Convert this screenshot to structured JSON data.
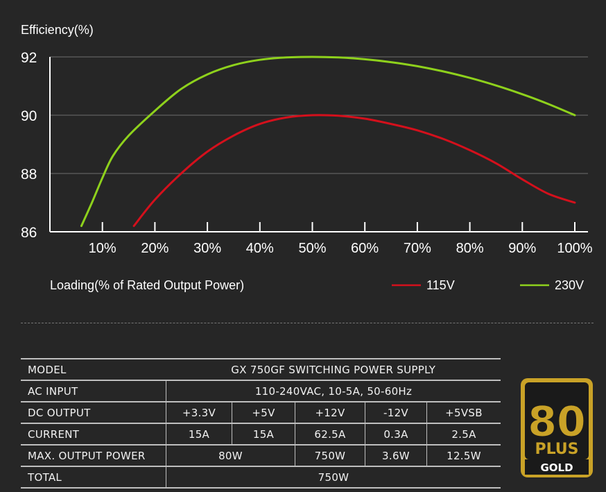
{
  "chart_data": {
    "type": "line",
    "ylabel": "Efficiency(%)",
    "xlabel": "Loading(% of Rated Output Power)",
    "y_ticks": [
      "86",
      "88",
      "90",
      "92"
    ],
    "ylim": [
      86,
      92
    ],
    "x_ticks": [
      "10%",
      "20%",
      "30%",
      "40%",
      "50%",
      "60%",
      "70%",
      "80%",
      "90%",
      "100%"
    ],
    "xlim": [
      0,
      100
    ],
    "grid": "horizontal",
    "legend_position": "bottom-right",
    "series": [
      {
        "name": "115V",
        "color": "#d4101c",
        "x": [
          16,
          20,
          25,
          30,
          35,
          40,
          45,
          50,
          55,
          60,
          65,
          70,
          75,
          80,
          85,
          90,
          95,
          100
        ],
        "y": [
          86.2,
          87.1,
          88.0,
          88.75,
          89.3,
          89.7,
          89.92,
          90.0,
          89.98,
          89.88,
          89.7,
          89.48,
          89.18,
          88.8,
          88.35,
          87.8,
          87.3,
          87.0
        ]
      },
      {
        "name": "230V",
        "color": "#8ed11c",
        "x": [
          6,
          8,
          10,
          12,
          15,
          20,
          25,
          30,
          35,
          40,
          45,
          50,
          55,
          60,
          65,
          70,
          75,
          80,
          85,
          90,
          95,
          100
        ],
        "y": [
          86.2,
          87.0,
          87.85,
          88.6,
          89.3,
          90.15,
          90.9,
          91.4,
          91.72,
          91.9,
          91.98,
          92.0,
          91.98,
          91.92,
          91.82,
          91.68,
          91.5,
          91.28,
          91.02,
          90.72,
          90.38,
          90.0
        ]
      }
    ]
  },
  "spec_table": {
    "model_label": "MODEL",
    "model_value": "GX 750GF SWITCHING POWER SUPPLY",
    "ac_label": "AC INPUT",
    "ac_value": "110-240VAC,  10-5A,  50-60Hz",
    "dc_label": "DC OUTPUT",
    "dc_values": [
      "+3.3V",
      "+5V",
      "+12V",
      "-12V",
      "+5VSB"
    ],
    "current_label": "CURRENT",
    "current_values": [
      "15A",
      "15A",
      "62.5A",
      "0.3A",
      "2.5A"
    ],
    "max_label": "MAX. OUTPUT POWER",
    "max_values": [
      "80W",
      "750W",
      "3.6W",
      "12.5W"
    ],
    "total_label": "TOTAL",
    "total_value": "750W"
  },
  "badge": {
    "number": "80",
    "plus": "PLUS",
    "grade": "GOLD",
    "colors": {
      "gold": "#c9a227",
      "dark": "#1a1a1a"
    }
  }
}
